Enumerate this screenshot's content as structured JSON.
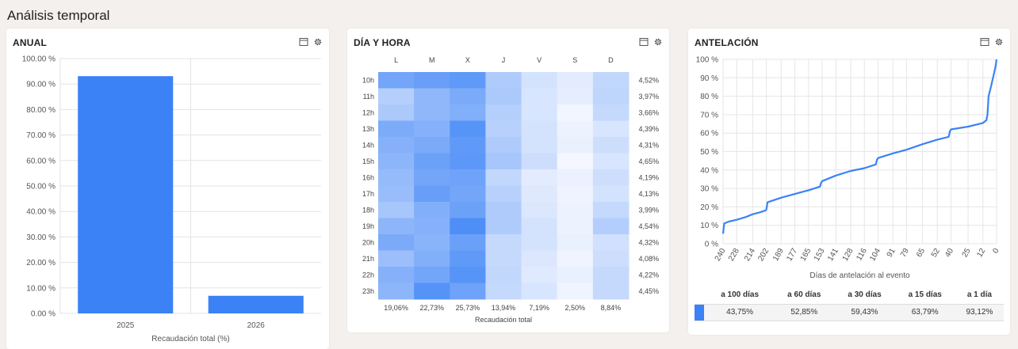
{
  "page": {
    "title": "Análisis temporal"
  },
  "colors": {
    "primary": "#3b82f6"
  },
  "icons": {
    "expand": "window-icon",
    "settings": "gear-icon"
  },
  "annual": {
    "title": "ANUAL",
    "chart_data": {
      "type": "bar",
      "categories": [
        "2025",
        "2026"
      ],
      "values": [
        93.1,
        6.9
      ],
      "xlabel": "Recaudación total (%)",
      "ylim": [
        0,
        100
      ],
      "yticks": [
        "0.00 %",
        "10.00 %",
        "20.00 %",
        "30.00 %",
        "40.00 %",
        "50.00 %",
        "60.00 %",
        "70.00 %",
        "80.00 %",
        "90.00 %",
        "100.00 %"
      ],
      "grid": true
    }
  },
  "dayhour": {
    "title": "DÍA Y HORA",
    "chart_data": {
      "type": "heatmap",
      "columns": [
        "L",
        "M",
        "X",
        "J",
        "V",
        "S",
        "D"
      ],
      "rows": [
        "10h",
        "11h",
        "12h",
        "13h",
        "14h",
        "15h",
        "16h",
        "17h",
        "18h",
        "19h",
        "20h",
        "21h",
        "22h",
        "23h"
      ],
      "row_totals": [
        "4,52%",
        "3,97%",
        "3,66%",
        "4,39%",
        "4,31%",
        "4,65%",
        "4,19%",
        "4,13%",
        "3,99%",
        "4,54%",
        "4,32%",
        "4,08%",
        "4,22%",
        "4,45%"
      ],
      "col_totals": [
        "19,06%",
        "22,73%",
        "25,73%",
        "13,94%",
        "7,19%",
        "2,50%",
        "8,84%"
      ],
      "xlabel": "Recaudación total",
      "intensity": [
        [
          0.7,
          0.76,
          0.8,
          0.38,
          0.18,
          0.1,
          0.28
        ],
        [
          0.35,
          0.55,
          0.66,
          0.4,
          0.16,
          0.09,
          0.3
        ],
        [
          0.4,
          0.55,
          0.62,
          0.35,
          0.16,
          0.02,
          0.26
        ],
        [
          0.65,
          0.6,
          0.85,
          0.33,
          0.18,
          0.05,
          0.16
        ],
        [
          0.6,
          0.66,
          0.8,
          0.38,
          0.18,
          0.07,
          0.22
        ],
        [
          0.56,
          0.74,
          0.82,
          0.42,
          0.22,
          0.01,
          0.16
        ],
        [
          0.52,
          0.7,
          0.72,
          0.28,
          0.1,
          0.06,
          0.22
        ],
        [
          0.5,
          0.76,
          0.7,
          0.33,
          0.13,
          0.04,
          0.18
        ],
        [
          0.42,
          0.62,
          0.74,
          0.38,
          0.14,
          0.05,
          0.26
        ],
        [
          0.56,
          0.6,
          0.9,
          0.38,
          0.18,
          0.05,
          0.36
        ],
        [
          0.66,
          0.58,
          0.75,
          0.26,
          0.18,
          0.07,
          0.2
        ],
        [
          0.48,
          0.62,
          0.8,
          0.26,
          0.14,
          0.03,
          0.22
        ],
        [
          0.6,
          0.7,
          0.85,
          0.28,
          0.12,
          0.07,
          0.26
        ],
        [
          0.56,
          0.86,
          0.72,
          0.26,
          0.16,
          0.03,
          0.26
        ]
      ]
    }
  },
  "antelacion": {
    "title": "ANTELACIÓN",
    "chart_data": {
      "type": "line",
      "xlabel": "Días de antelación al evento",
      "xticks": [
        "240",
        "228",
        "214",
        "202",
        "189",
        "177",
        "165",
        "153",
        "141",
        "128",
        "116",
        "104",
        "91",
        "79",
        "65",
        "52",
        "40",
        "25",
        "12",
        "0"
      ],
      "yticks": [
        "0 %",
        "10 %",
        "20 %",
        "30 %",
        "40 %",
        "50 %",
        "60 %",
        "70 %",
        "80 %",
        "90 %",
        "100 %"
      ],
      "ylim": [
        0,
        100
      ],
      "xlim": [
        240,
        0
      ],
      "grid": true,
      "x": [
        240,
        239,
        235,
        228,
        220,
        214,
        208,
        203,
        202,
        201,
        189,
        177,
        165,
        155,
        154,
        153,
        141,
        128,
        116,
        106,
        105,
        104,
        91,
        79,
        65,
        52,
        42,
        41,
        40,
        25,
        12,
        9,
        8,
        7,
        5,
        2,
        1,
        0
      ],
      "y": [
        5.5,
        11,
        12,
        13,
        14.5,
        16,
        17,
        18,
        18.5,
        22.5,
        25,
        27,
        29,
        31,
        33,
        34,
        37,
        39.5,
        41,
        43,
        45.5,
        46.5,
        49,
        51,
        54,
        56.5,
        58,
        61,
        62,
        63.5,
        65.5,
        67,
        70,
        80,
        85,
        93,
        96,
        100
      ]
    },
    "summary": {
      "headers": [
        "a 100 días",
        "a 60 días",
        "a 30 días",
        "a 15 días",
        "a 1 día"
      ],
      "values": [
        "43,75%",
        "52,85%",
        "59,43%",
        "63,79%",
        "93,12%"
      ]
    }
  }
}
